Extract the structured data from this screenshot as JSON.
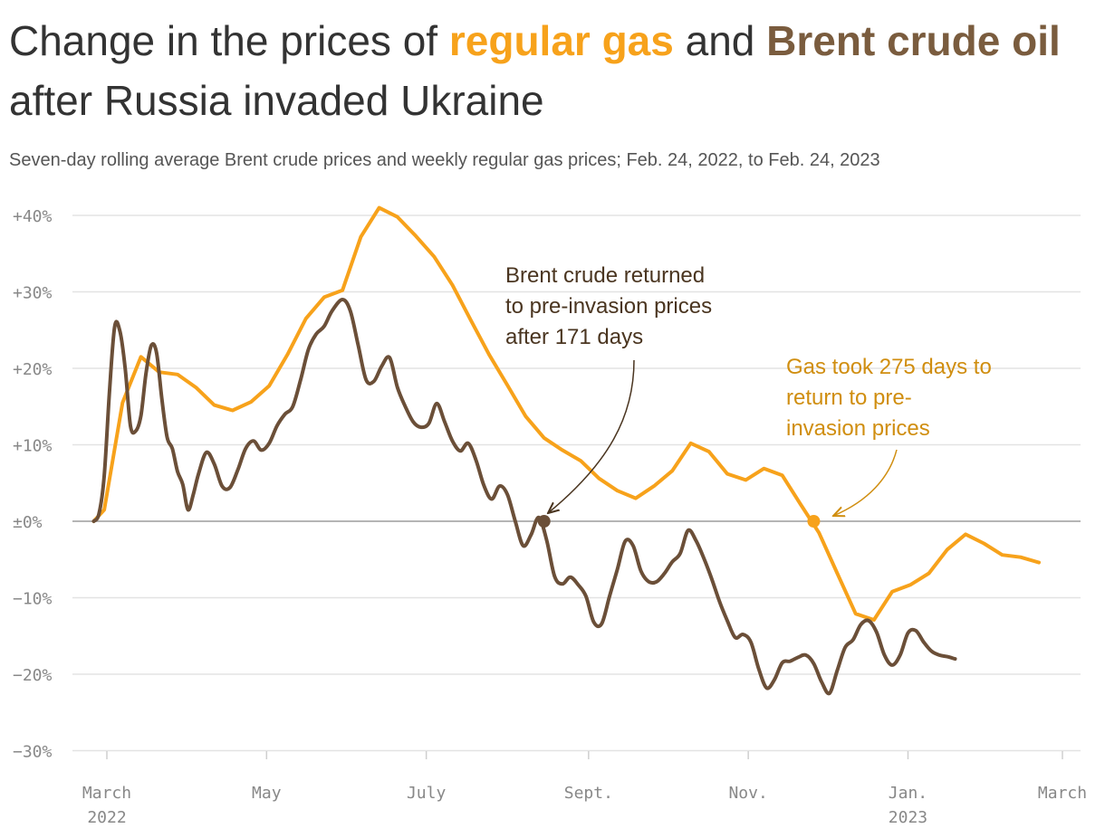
{
  "title": {
    "part1": "Change in the prices of ",
    "gas": "regular gas",
    "part2": " and ",
    "brent": "Brent crude oil",
    "part3": " after Russia invaded Ukraine"
  },
  "subtitle": "Seven-day rolling average Brent crude prices and weekly regular gas prices; Feb. 24, 2022, to Feb. 24, 2023",
  "colors": {
    "gas": "#f7a21b",
    "brent": "#6b4f38",
    "gas_annotation": "#d08e10",
    "brent_annotation": "#4a3520"
  },
  "chart_data": {
    "type": "line",
    "x_unit": "date",
    "y_unit": "percent change",
    "ylim": [
      -30,
      40
    ],
    "xlim": [
      "2022-02-24",
      "2023-02-28"
    ],
    "grid": true,
    "y_ticks": [
      {
        "value": 40,
        "label": "+40%"
      },
      {
        "value": 30,
        "label": "+30%"
      },
      {
        "value": 20,
        "label": "+20%"
      },
      {
        "value": 10,
        "label": "+10%"
      },
      {
        "value": 0,
        "label": "±0%"
      },
      {
        "value": -10,
        "label": "−10%"
      },
      {
        "value": -20,
        "label": "−20%"
      },
      {
        "value": -30,
        "label": "−30%"
      }
    ],
    "x_ticks": [
      {
        "date": "2022-03-01",
        "label": "March",
        "sublabel": "2022"
      },
      {
        "date": "2022-05-01",
        "label": "May",
        "sublabel": ""
      },
      {
        "date": "2022-07-01",
        "label": "July",
        "sublabel": ""
      },
      {
        "date": "2022-09-01",
        "label": "Sept.",
        "sublabel": ""
      },
      {
        "date": "2022-11-01",
        "label": "Nov.",
        "sublabel": ""
      },
      {
        "date": "2023-01-01",
        "label": "Jan.",
        "sublabel": "2023"
      },
      {
        "date": "2023-03-01",
        "label": "March",
        "sublabel": ""
      }
    ],
    "series": [
      {
        "name": "regular gas",
        "color": "#f7a21b",
        "points": [
          [
            "2022-02-24",
            0
          ],
          [
            "2022-02-28",
            1.5
          ],
          [
            "2022-03-07",
            15.5
          ],
          [
            "2022-03-14",
            21.5
          ],
          [
            "2022-03-21",
            19.5
          ],
          [
            "2022-03-28",
            19.2
          ],
          [
            "2022-04-04",
            17.5
          ],
          [
            "2022-04-11",
            15.2
          ],
          [
            "2022-04-18",
            14.5
          ],
          [
            "2022-04-25",
            15.6
          ],
          [
            "2022-05-02",
            17.7
          ],
          [
            "2022-05-09",
            21.8
          ],
          [
            "2022-05-16",
            26.5
          ],
          [
            "2022-05-23",
            29.3
          ],
          [
            "2022-05-30",
            30.2
          ],
          [
            "2022-06-06",
            37.2
          ],
          [
            "2022-06-13",
            41
          ],
          [
            "2022-06-20",
            39.8
          ],
          [
            "2022-06-27",
            37.3
          ],
          [
            "2022-07-04",
            34.6
          ],
          [
            "2022-07-11",
            30.9
          ],
          [
            "2022-07-18",
            26.3
          ],
          [
            "2022-07-25",
            21.8
          ],
          [
            "2022-08-01",
            17.8
          ],
          [
            "2022-08-08",
            13.7
          ],
          [
            "2022-08-15",
            10.9
          ],
          [
            "2022-08-22",
            9.3
          ],
          [
            "2022-08-29",
            7.9
          ],
          [
            "2022-09-05",
            5.6
          ],
          [
            "2022-09-12",
            4
          ],
          [
            "2022-09-19",
            3
          ],
          [
            "2022-09-26",
            4.6
          ],
          [
            "2022-10-03",
            6.6
          ],
          [
            "2022-10-10",
            10.2
          ],
          [
            "2022-10-17",
            9.1
          ],
          [
            "2022-10-24",
            6.2
          ],
          [
            "2022-10-31",
            5.4
          ],
          [
            "2022-11-07",
            6.9
          ],
          [
            "2022-11-14",
            6
          ],
          [
            "2022-11-21",
            2.2
          ],
          [
            "2022-11-28",
            -1.5
          ],
          [
            "2022-12-05",
            -6.8
          ],
          [
            "2022-12-12",
            -12.1
          ],
          [
            "2022-12-19",
            -12.9
          ],
          [
            "2022-12-26",
            -9.2
          ],
          [
            "2023-01-02",
            -8.3
          ],
          [
            "2023-01-09",
            -6.8
          ],
          [
            "2023-01-16",
            -3.7
          ],
          [
            "2023-01-23",
            -1.7
          ],
          [
            "2023-01-30",
            -2.9
          ],
          [
            "2023-02-06",
            -4.4
          ],
          [
            "2023-02-13",
            -4.7
          ],
          [
            "2023-02-20",
            -5.4
          ]
        ]
      },
      {
        "name": "Brent crude oil",
        "color": "#6b4f38",
        "points": [
          [
            "2022-02-24",
            0
          ],
          [
            "2022-02-26",
            1
          ],
          [
            "2022-02-28",
            6
          ],
          [
            "2022-03-02",
            17
          ],
          [
            "2022-03-04",
            25.5
          ],
          [
            "2022-03-06",
            24.8
          ],
          [
            "2022-03-08",
            20
          ],
          [
            "2022-03-10",
            12.5
          ],
          [
            "2022-03-12",
            11.8
          ],
          [
            "2022-03-14",
            13.8
          ],
          [
            "2022-03-16",
            19.5
          ],
          [
            "2022-03-18",
            23
          ],
          [
            "2022-03-20",
            22
          ],
          [
            "2022-03-22",
            16
          ],
          [
            "2022-03-24",
            11
          ],
          [
            "2022-03-26",
            9.5
          ],
          [
            "2022-03-28",
            6.5
          ],
          [
            "2022-03-30",
            4.8
          ],
          [
            "2022-04-01",
            1.5
          ],
          [
            "2022-04-03",
            3.5
          ],
          [
            "2022-04-05",
            6.2
          ],
          [
            "2022-04-08",
            9
          ],
          [
            "2022-04-11",
            7.5
          ],
          [
            "2022-04-14",
            4.6
          ],
          [
            "2022-04-17",
            4.4
          ],
          [
            "2022-04-20",
            6.7
          ],
          [
            "2022-04-23",
            9.5
          ],
          [
            "2022-04-26",
            10.5
          ],
          [
            "2022-04-29",
            9.3
          ],
          [
            "2022-05-02",
            10.2
          ],
          [
            "2022-05-05",
            12.5
          ],
          [
            "2022-05-08",
            14
          ],
          [
            "2022-05-11",
            15
          ],
          [
            "2022-05-14",
            18.5
          ],
          [
            "2022-05-17",
            22.5
          ],
          [
            "2022-05-20",
            24.5
          ],
          [
            "2022-05-23",
            25.5
          ],
          [
            "2022-05-26",
            27.5
          ],
          [
            "2022-05-30",
            29
          ],
          [
            "2022-06-02",
            27.5
          ],
          [
            "2022-06-05",
            23
          ],
          [
            "2022-06-08",
            18.5
          ],
          [
            "2022-06-11",
            18.3
          ],
          [
            "2022-06-14",
            20.3
          ],
          [
            "2022-06-17",
            21.4
          ],
          [
            "2022-06-20",
            17.5
          ],
          [
            "2022-06-23",
            15
          ],
          [
            "2022-06-26",
            13
          ],
          [
            "2022-06-29",
            12.3
          ],
          [
            "2022-07-02",
            12.8
          ],
          [
            "2022-07-05",
            15.4
          ],
          [
            "2022-07-08",
            13
          ],
          [
            "2022-07-11",
            10.5
          ],
          [
            "2022-07-14",
            9.2
          ],
          [
            "2022-07-17",
            10.2
          ],
          [
            "2022-07-20",
            8
          ],
          [
            "2022-07-23",
            4.7
          ],
          [
            "2022-07-26",
            2.9
          ],
          [
            "2022-07-29",
            4.6
          ],
          [
            "2022-08-01",
            3.5
          ],
          [
            "2022-08-04",
            0
          ],
          [
            "2022-08-07",
            -3.2
          ],
          [
            "2022-08-10",
            -1.8
          ],
          [
            "2022-08-13",
            0.5
          ],
          [
            "2022-08-16",
            -2.5
          ],
          [
            "2022-08-19",
            -7.2
          ],
          [
            "2022-08-22",
            -8.2
          ],
          [
            "2022-08-25",
            -7.3
          ],
          [
            "2022-08-28",
            -8.3
          ],
          [
            "2022-08-31",
            -9.8
          ],
          [
            "2022-09-03",
            -13.2
          ],
          [
            "2022-09-06",
            -13.4
          ],
          [
            "2022-09-09",
            -9.8
          ],
          [
            "2022-09-12",
            -6.3
          ],
          [
            "2022-09-15",
            -2.6
          ],
          [
            "2022-09-18",
            -3.2
          ],
          [
            "2022-09-21",
            -6.5
          ],
          [
            "2022-09-24",
            -7.9
          ],
          [
            "2022-09-27",
            -7.9
          ],
          [
            "2022-09-30",
            -6.8
          ],
          [
            "2022-10-03",
            -5.3
          ],
          [
            "2022-10-06",
            -4.2
          ],
          [
            "2022-10-09",
            -1.2
          ],
          [
            "2022-10-12",
            -2.5
          ],
          [
            "2022-10-15",
            -4.8
          ],
          [
            "2022-10-18",
            -7.5
          ],
          [
            "2022-10-21",
            -10.5
          ],
          [
            "2022-10-24",
            -13
          ],
          [
            "2022-10-27",
            -15.2
          ],
          [
            "2022-10-30",
            -14.8
          ],
          [
            "2022-11-02",
            -15.8
          ],
          [
            "2022-11-05",
            -19.3
          ],
          [
            "2022-11-08",
            -21.8
          ],
          [
            "2022-11-11",
            -20.7
          ],
          [
            "2022-11-14",
            -18.5
          ],
          [
            "2022-11-17",
            -18.3
          ],
          [
            "2022-11-20",
            -17.8
          ],
          [
            "2022-11-23",
            -17.5
          ],
          [
            "2022-11-26",
            -18.6
          ],
          [
            "2022-11-29",
            -21
          ],
          [
            "2022-12-02",
            -22.5
          ],
          [
            "2022-12-05",
            -19.5
          ],
          [
            "2022-12-08",
            -16.5
          ],
          [
            "2022-12-11",
            -15.5
          ],
          [
            "2022-12-14",
            -13.5
          ],
          [
            "2022-12-17",
            -13
          ],
          [
            "2022-12-20",
            -14.5
          ],
          [
            "2022-12-23",
            -17.5
          ],
          [
            "2022-12-26",
            -18.8
          ],
          [
            "2022-12-29",
            -17.5
          ],
          [
            "2023-01-01",
            -14.6
          ],
          [
            "2023-01-04",
            -14.3
          ],
          [
            "2023-01-07",
            -15.8
          ],
          [
            "2023-01-10",
            -17
          ],
          [
            "2023-01-13",
            -17.5
          ],
          [
            "2023-01-16",
            -17.7
          ],
          [
            "2023-01-19",
            -18
          ]
        ]
      }
    ],
    "annotations": [
      {
        "text_lines": [
          "Brent crude returned",
          "to pre-invasion prices",
          "after 171 days"
        ],
        "series": "Brent crude oil",
        "date": "2022-08-15",
        "value": 0
      },
      {
        "text_lines": [
          "Gas took 275 days to",
          "return to pre-",
          "invasion prices"
        ],
        "series": "regular gas",
        "date": "2022-11-26",
        "value": 0
      }
    ]
  }
}
